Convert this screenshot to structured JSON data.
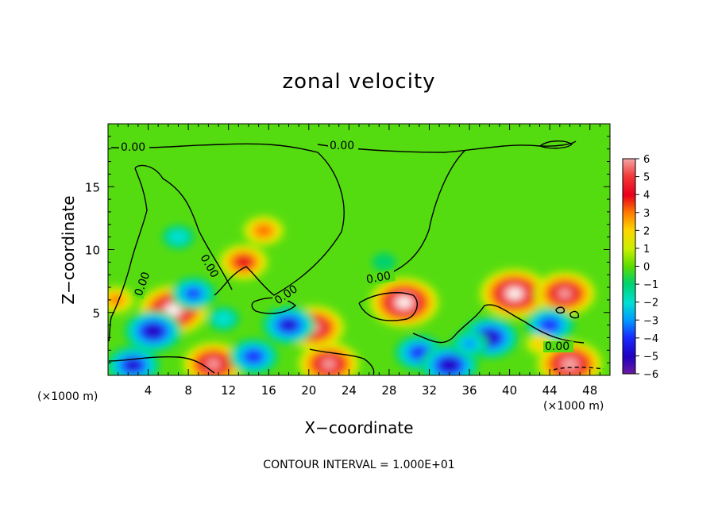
{
  "chart_data": {
    "type": "heatmap",
    "title": "zonal velocity",
    "xlabel": "X−coordinate",
    "ylabel": "Z−coordinate",
    "x_unit": "(×1000 m)",
    "y_unit": "(×1000 m)",
    "xlim": [
      0,
      50
    ],
    "ylim": [
      0,
      20
    ],
    "x_ticks": [
      4,
      8,
      12,
      16,
      20,
      24,
      28,
      32,
      36,
      40,
      44,
      48
    ],
    "y_ticks": [
      5,
      10,
      15
    ],
    "colorbar": {
      "range": [
        -6,
        6
      ],
      "ticks": [
        6,
        5,
        4,
        3,
        2,
        1,
        0,
        -1,
        -2,
        -3,
        -4,
        -5,
        -6
      ],
      "tick_labels": [
        "6",
        "5",
        "4",
        "3",
        "2",
        "1",
        "0",
        "−1",
        "−2",
        "−3",
        "−4",
        "−5",
        "−6"
      ]
    },
    "contour_labels": [
      "0.00",
      "0.00",
      "0.00",
      "0.00",
      "0.00",
      "0.00",
      "0.00"
    ],
    "features": [
      {
        "x": 6.5,
        "z": 5.2,
        "value": 6.5
      },
      {
        "x": 10.5,
        "z": 0.9,
        "value": 5.5
      },
      {
        "x": 22.0,
        "z": 0.9,
        "value": 5.5
      },
      {
        "x": 29.5,
        "z": 5.8,
        "value": 6.5
      },
      {
        "x": 40.5,
        "z": 6.5,
        "value": 6.5
      },
      {
        "x": 45.5,
        "z": 6.5,
        "value": 5.5
      },
      {
        "x": 46.0,
        "z": 0.9,
        "value": 6.0
      },
      {
        "x": 20.5,
        "z": 3.8,
        "value": 5.5
      },
      {
        "x": 13.5,
        "z": 9.0,
        "value": 4.0
      },
      {
        "x": 15.5,
        "z": 11.5,
        "value": 3.0
      },
      {
        "x": 4.5,
        "z": 3.5,
        "value": -5.0
      },
      {
        "x": 2.5,
        "z": 0.8,
        "value": -4.5
      },
      {
        "x": 8.5,
        "z": 6.5,
        "value": -3.5
      },
      {
        "x": 14.5,
        "z": 1.5,
        "value": -4.0
      },
      {
        "x": 18.0,
        "z": 4.0,
        "value": -4.5
      },
      {
        "x": 31.0,
        "z": 1.8,
        "value": -4.0
      },
      {
        "x": 34.0,
        "z": 0.8,
        "value": -5.0
      },
      {
        "x": 38.0,
        "z": 3.0,
        "value": -5.0
      },
      {
        "x": 44.0,
        "z": 4.0,
        "value": -4.0
      },
      {
        "x": 36.0,
        "z": 2.5,
        "value": -2.5
      },
      {
        "x": 11.5,
        "z": 4.5,
        "value": -2.0
      },
      {
        "x": 7.0,
        "z": 11.0,
        "value": -2.0
      },
      {
        "x": 0.8,
        "z": 6.0,
        "value": 2.5
      },
      {
        "x": 43.0,
        "z": 2.5,
        "value": 1.5
      },
      {
        "x": 27.5,
        "z": 9.0,
        "value": -1.0
      }
    ],
    "footer": "CONTOUR INTERVAL = 1.000E+01"
  }
}
